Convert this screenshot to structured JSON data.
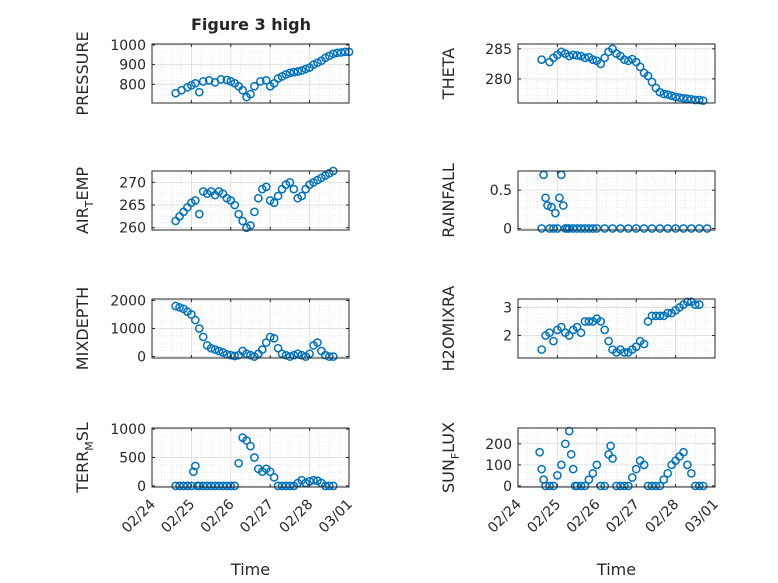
{
  "figure": {
    "title": "Figure 3 high",
    "marker_color": "#0072BD"
  },
  "chart_data": [
    {
      "id": "pressure",
      "type": "scatter",
      "ylabel_parts": [
        "PRESSURE"
      ],
      "ylim": [
        705,
        1005
      ],
      "yticks": [
        800,
        900,
        1000
      ],
      "ytick_labels": [
        "800",
        "900",
        "1000"
      ],
      "xlim": [
        0,
        5
      ],
      "grid": true,
      "series": [
        {
          "x": [
            0.6,
            0.75,
            0.9,
            1.0,
            1.1,
            1.2,
            1.3,
            1.45,
            1.6,
            1.75,
            1.9,
            2.0,
            2.1,
            2.2,
            2.3,
            2.4,
            2.5,
            2.6,
            2.75,
            2.9,
            3.0,
            3.1,
            3.2,
            3.3,
            3.4,
            3.5,
            3.6,
            3.7,
            3.8,
            3.9,
            4.0,
            4.1,
            4.2,
            4.3,
            4.4,
            4.5,
            4.6,
            4.7,
            4.8,
            4.9,
            5.0
          ],
          "y": [
            755,
            770,
            785,
            795,
            805,
            760,
            815,
            820,
            810,
            825,
            822,
            815,
            805,
            790,
            770,
            735,
            750,
            790,
            815,
            820,
            790,
            805,
            830,
            840,
            850,
            858,
            862,
            865,
            870,
            878,
            885,
            900,
            910,
            920,
            935,
            945,
            955,
            960,
            962,
            965,
            965
          ]
        }
      ]
    },
    {
      "id": "theta",
      "type": "scatter",
      "ylabel_parts": [
        "THETA"
      ],
      "ylim": [
        276,
        285.8
      ],
      "yticks": [
        280,
        285
      ],
      "ytick_labels": [
        "280",
        "285"
      ],
      "xlim": [
        0,
        5
      ],
      "grid": true,
      "series": [
        {
          "x": [
            0.6,
            0.8,
            0.9,
            1.0,
            1.1,
            1.2,
            1.3,
            1.4,
            1.5,
            1.6,
            1.7,
            1.8,
            1.9,
            2.0,
            2.1,
            2.2,
            2.3,
            2.4,
            2.5,
            2.6,
            2.7,
            2.8,
            2.9,
            3.0,
            3.1,
            3.2,
            3.3,
            3.4,
            3.5,
            3.6,
            3.7,
            3.8,
            3.9,
            4.0,
            4.1,
            4.2,
            4.3,
            4.4,
            4.5,
            4.6,
            4.7
          ],
          "y": [
            283.2,
            282.8,
            283.5,
            284.0,
            284.5,
            284.2,
            283.8,
            284.0,
            283.9,
            283.8,
            283.5,
            283.6,
            283.2,
            283.0,
            282.5,
            283.5,
            284.5,
            285.0,
            284.2,
            283.8,
            283.2,
            283.0,
            283.3,
            282.8,
            282.0,
            281.0,
            280.5,
            279.5,
            278.5,
            277.8,
            277.5,
            277.4,
            277.2,
            277.0,
            276.9,
            276.8,
            276.7,
            276.6,
            276.5,
            276.5,
            276.4
          ]
        }
      ]
    },
    {
      "id": "air-temp",
      "type": "scatter",
      "ylabel_parts": [
        "AIR",
        "T",
        "EMP"
      ],
      "ylim": [
        259.5,
        272.5
      ],
      "yticks": [
        260,
        265,
        270
      ],
      "ytick_labels": [
        "260",
        "265",
        "270"
      ],
      "xlim": [
        0,
        5
      ],
      "grid": true,
      "series": [
        {
          "x": [
            0.6,
            0.7,
            0.8,
            0.9,
            1.0,
            1.1,
            1.2,
            1.3,
            1.4,
            1.5,
            1.6,
            1.7,
            1.8,
            1.9,
            2.0,
            2.1,
            2.2,
            2.3,
            2.4,
            2.5,
            2.6,
            2.7,
            2.8,
            2.9,
            3.0,
            3.1,
            3.2,
            3.3,
            3.4,
            3.5,
            3.6,
            3.7,
            3.8,
            3.9,
            4.0,
            4.1,
            4.2,
            4.3,
            4.4,
            4.5,
            4.6
          ],
          "y": [
            261.5,
            262.5,
            263.5,
            264.5,
            265.5,
            266.0,
            263.0,
            268.0,
            267.5,
            268.0,
            267.2,
            268.0,
            267.5,
            266.5,
            266.0,
            265.0,
            263.0,
            261.5,
            260.0,
            260.5,
            263.5,
            266.5,
            268.5,
            269.0,
            266.0,
            265.5,
            267.0,
            268.5,
            269.5,
            270.0,
            268.5,
            266.5,
            267.0,
            268.5,
            269.5,
            270.0,
            270.5,
            271.0,
            271.5,
            272.0,
            272.5
          ]
        }
      ]
    },
    {
      "id": "rainfall",
      "type": "scatter",
      "ylabel_parts": [
        "RAINFALL"
      ],
      "ylim": [
        -0.02,
        0.75
      ],
      "yticks": [
        0,
        0.5
      ],
      "ytick_labels": [
        "0",
        "0.5"
      ],
      "xlim": [
        0,
        5
      ],
      "grid": true,
      "series": [
        {
          "x": [
            0.6,
            0.65,
            0.7,
            0.75,
            0.8,
            0.85,
            0.9,
            0.95,
            1.0,
            1.05,
            1.1,
            1.15,
            1.2,
            1.25,
            1.3,
            1.4,
            1.5,
            1.6,
            1.7,
            1.8,
            1.9,
            2.0,
            2.2,
            2.4,
            2.6,
            2.8,
            3.0,
            3.2,
            3.4,
            3.6,
            3.8,
            4.0,
            4.2,
            4.4,
            4.6,
            4.8
          ],
          "y": [
            0,
            0.7,
            0.4,
            0.3,
            0,
            0.28,
            0,
            0.2,
            0,
            0.4,
            0.7,
            0.3,
            0,
            0,
            0,
            0,
            0,
            0,
            0,
            0,
            0,
            0,
            0,
            0,
            0,
            0,
            0,
            0,
            0,
            0,
            0,
            0,
            0,
            0,
            0,
            0
          ]
        }
      ]
    },
    {
      "id": "mixdepth",
      "type": "scatter",
      "ylabel_parts": [
        "MIXDEPTH"
      ],
      "ylim": [
        -50,
        2050
      ],
      "yticks": [
        0,
        1000,
        2000
      ],
      "ytick_labels": [
        "0",
        "1000",
        "2000"
      ],
      "xlim": [
        0,
        5
      ],
      "grid": true,
      "series": [
        {
          "x": [
            0.6,
            0.7,
            0.8,
            0.9,
            1.0,
            1.1,
            1.2,
            1.3,
            1.4,
            1.5,
            1.6,
            1.7,
            1.8,
            1.9,
            2.0,
            2.1,
            2.2,
            2.3,
            2.4,
            2.5,
            2.6,
            2.7,
            2.8,
            2.9,
            3.0,
            3.1,
            3.2,
            3.3,
            3.4,
            3.5,
            3.6,
            3.7,
            3.8,
            3.9,
            4.0,
            4.1,
            4.2,
            4.3,
            4.4,
            4.5,
            4.6
          ],
          "y": [
            1800,
            1750,
            1700,
            1600,
            1500,
            1300,
            1000,
            700,
            400,
            300,
            250,
            200,
            150,
            80,
            50,
            20,
            50,
            200,
            100,
            50,
            0,
            100,
            250,
            500,
            700,
            650,
            300,
            100,
            50,
            0,
            50,
            100,
            50,
            0,
            100,
            400,
            500,
            200,
            50,
            0,
            0
          ]
        }
      ]
    },
    {
      "id": "h2omixra",
      "type": "scatter",
      "ylabel_parts": [
        "H2OMIXRA"
      ],
      "ylim": [
        1.2,
        3.3
      ],
      "yticks": [
        2,
        3
      ],
      "ytick_labels": [
        "2",
        "3"
      ],
      "xlim": [
        0,
        5
      ],
      "grid": true,
      "series": [
        {
          "x": [
            0.6,
            0.7,
            0.8,
            0.9,
            1.0,
            1.1,
            1.2,
            1.3,
            1.4,
            1.5,
            1.6,
            1.7,
            1.8,
            1.9,
            2.0,
            2.1,
            2.2,
            2.3,
            2.4,
            2.5,
            2.6,
            2.7,
            2.8,
            2.9,
            3.0,
            3.1,
            3.2,
            3.3,
            3.4,
            3.5,
            3.6,
            3.7,
            3.8,
            3.9,
            4.0,
            4.1,
            4.2,
            4.3,
            4.4,
            4.5,
            4.6
          ],
          "y": [
            1.5,
            2.0,
            2.1,
            1.8,
            2.2,
            2.3,
            2.1,
            2.0,
            2.2,
            2.3,
            2.1,
            2.5,
            2.5,
            2.5,
            2.6,
            2.5,
            2.2,
            1.8,
            1.5,
            1.4,
            1.5,
            1.4,
            1.4,
            1.5,
            1.6,
            1.8,
            1.7,
            2.5,
            2.7,
            2.7,
            2.7,
            2.7,
            2.8,
            2.8,
            2.9,
            3.0,
            3.1,
            3.2,
            3.2,
            3.1,
            3.1
          ]
        }
      ]
    },
    {
      "id": "terr-msl",
      "type": "scatter",
      "ylabel_parts": [
        "TERR",
        "M",
        "SL"
      ],
      "ylim": [
        -20,
        1020
      ],
      "yticks": [
        0,
        500,
        1000
      ],
      "ytick_labels": [
        "0",
        "500",
        "1000"
      ],
      "xlim": [
        0,
        5
      ],
      "grid": true,
      "series": [
        {
          "x": [
            0.6,
            0.7,
            0.8,
            0.9,
            1.0,
            1.05,
            1.1,
            1.15,
            1.2,
            1.3,
            1.4,
            1.5,
            1.6,
            1.7,
            1.8,
            1.9,
            2.0,
            2.1,
            2.2,
            2.3,
            2.4,
            2.5,
            2.6,
            2.7,
            2.8,
            2.9,
            3.0,
            3.1,
            3.2,
            3.3,
            3.4,
            3.5,
            3.6,
            3.7,
            3.8,
            3.9,
            4.0,
            4.1,
            4.2,
            4.3,
            4.4,
            4.5,
            4.6
          ],
          "y": [
            0,
            0,
            0,
            0,
            0,
            250,
            350,
            0,
            0,
            0,
            0,
            0,
            0,
            0,
            0,
            0,
            0,
            0,
            400,
            850,
            800,
            700,
            500,
            300,
            250,
            300,
            250,
            150,
            0,
            0,
            0,
            0,
            0,
            50,
            100,
            50,
            80,
            100,
            90,
            50,
            0,
            0,
            0
          ]
        }
      ]
    },
    {
      "id": "sun-flux",
      "type": "scatter",
      "ylabel_parts": [
        "SUN",
        "F",
        "LUX"
      ],
      "ylim": [
        -5,
        275
      ],
      "yticks": [
        0,
        100,
        200
      ],
      "ytick_labels": [
        "0",
        "100",
        "200"
      ],
      "xlim": [
        0,
        5
      ],
      "grid": true,
      "series": [
        {
          "x": [
            0.55,
            0.6,
            0.65,
            0.7,
            0.8,
            0.9,
            1.0,
            1.1,
            1.2,
            1.3,
            1.35,
            1.4,
            1.45,
            1.5,
            1.6,
            1.7,
            1.8,
            1.9,
            2.0,
            2.1,
            2.2,
            2.3,
            2.35,
            2.4,
            2.5,
            2.6,
            2.7,
            2.8,
            2.9,
            3.0,
            3.1,
            3.2,
            3.3,
            3.4,
            3.5,
            3.6,
            3.7,
            3.8,
            3.9,
            4.0,
            4.1,
            4.2,
            4.3,
            4.4,
            4.5,
            4.6,
            4.7
          ],
          "y": [
            160,
            80,
            30,
            0,
            0,
            0,
            50,
            100,
            200,
            260,
            150,
            80,
            0,
            0,
            0,
            0,
            30,
            60,
            100,
            0,
            0,
            150,
            190,
            130,
            0,
            0,
            0,
            0,
            40,
            80,
            120,
            100,
            0,
            0,
            0,
            0,
            30,
            60,
            100,
            120,
            140,
            160,
            100,
            60,
            0,
            0,
            0
          ]
        }
      ]
    }
  ],
  "shared_x": {
    "xlabel": "Time",
    "ticks": [
      0,
      1,
      2,
      3,
      4,
      5
    ],
    "tick_labels": [
      "02/24",
      "02/25",
      "02/26",
      "02/27",
      "02/28",
      "03/01"
    ]
  }
}
